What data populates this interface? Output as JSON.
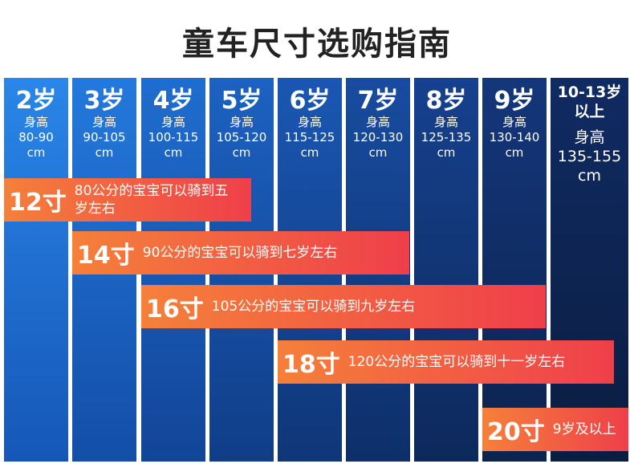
{
  "title": "童车尺寸选购指南",
  "columns": [
    {
      "age": "2岁",
      "height_label": "身高",
      "range": "80-90",
      "unit": "cm"
    },
    {
      "age": "3岁",
      "height_label": "身高",
      "range": "90-105",
      "unit": "cm"
    },
    {
      "age": "4岁",
      "height_label": "身高",
      "range": "100-115",
      "unit": "cm"
    },
    {
      "age": "5岁",
      "height_label": "身高",
      "range": "105-120",
      "unit": "cm"
    },
    {
      "age": "6岁",
      "height_label": "身高",
      "range": "115-125",
      "unit": "cm"
    },
    {
      "age": "7岁",
      "height_label": "身高",
      "range": "120-130",
      "unit": "cm"
    },
    {
      "age": "8岁",
      "height_label": "身高",
      "range": "125-135",
      "unit": "cm"
    },
    {
      "age": "9岁",
      "height_label": "身高",
      "range": "130-140",
      "unit": "cm"
    },
    {
      "age": "10-13岁",
      "age_note": "以上",
      "height_label": "身高",
      "range": "135-155",
      "unit": "cm"
    }
  ],
  "bars": [
    {
      "size": "12寸",
      "desc": "80公分的宝宝可以骑到五岁左右"
    },
    {
      "size": "14寸",
      "desc": "90公分的宝宝可以骑到七岁左右"
    },
    {
      "size": "16寸",
      "desc": "105公分的宝宝可以骑到九岁左右"
    },
    {
      "size": "18寸",
      "desc": "120公分的宝宝可以骑到十一岁左右"
    },
    {
      "size": "20寸",
      "desc": "9岁及以上"
    }
  ]
}
